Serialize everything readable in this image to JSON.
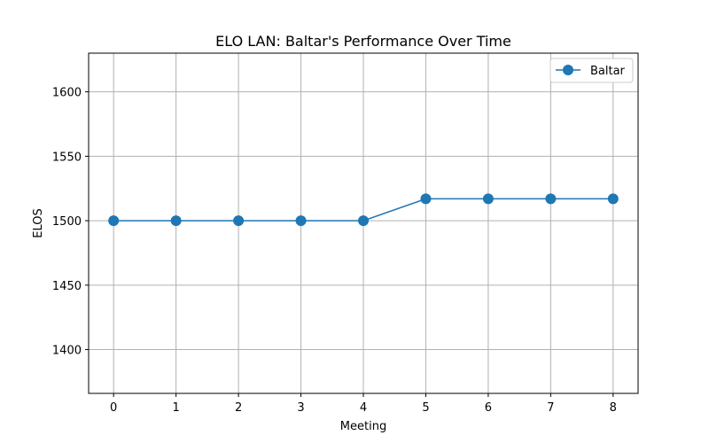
{
  "chart_data": {
    "type": "line",
    "title": "ELO LAN: Baltar's Performance Over Time",
    "xlabel": "Meeting",
    "ylabel": "ELOS",
    "x": [
      0,
      1,
      2,
      3,
      4,
      5,
      6,
      7,
      8
    ],
    "series": [
      {
        "name": "Baltar",
        "values": [
          1500,
          1500,
          1500,
          1500,
          1500,
          1517,
          1517,
          1517,
          1517
        ],
        "color": "#1f77b4",
        "marker": "circle"
      }
    ],
    "xlim": [
      -0.4,
      8.4
    ],
    "ylim": [
      1366,
      1630
    ],
    "xticks": [
      0,
      1,
      2,
      3,
      4,
      5,
      6,
      7,
      8
    ],
    "yticks": [
      1400,
      1450,
      1500,
      1550,
      1600
    ],
    "grid": true,
    "legend_position": "top-right"
  }
}
